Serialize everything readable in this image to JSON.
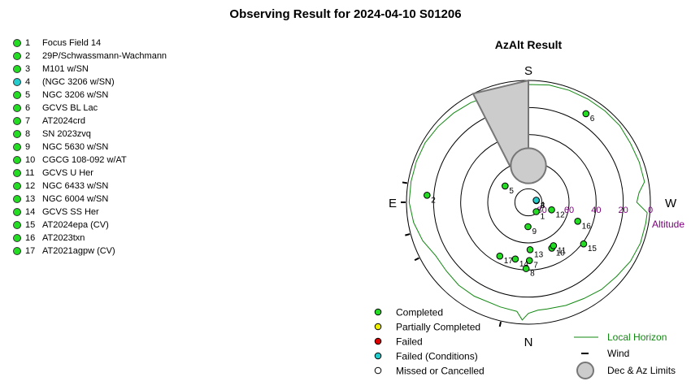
{
  "title": "Observing Result for 2024-04-10 S01206",
  "colors": {
    "completed": "#22dd22",
    "partial": "#eeee00",
    "failed": "#dd0000",
    "failed_conditions": "#22cccc",
    "missed": "#ffffff",
    "horizon": "#118811",
    "altitude_label": "#800080",
    "limits_fill": "#cccccc"
  },
  "targets": [
    {
      "num": "1",
      "name": "Focus Field 14",
      "status": "completed"
    },
    {
      "num": "2",
      "name": "29P/Schwassmann-Wachmann",
      "status": "completed"
    },
    {
      "num": "3",
      "name": "M101 w/SN",
      "status": "completed"
    },
    {
      "num": "4",
      "name": "(NGC 3206 w/SN)",
      "status": "failed_conditions"
    },
    {
      "num": "5",
      "name": "NGC 3206 w/SN",
      "status": "completed"
    },
    {
      "num": "6",
      "name": "GCVS BL Lac",
      "status": "completed"
    },
    {
      "num": "7",
      "name": "AT2024crd",
      "status": "completed"
    },
    {
      "num": "8",
      "name": "SN 2023zvq",
      "status": "completed"
    },
    {
      "num": "9",
      "name": "NGC 5630 w/SN",
      "status": "completed"
    },
    {
      "num": "10",
      "name": "CGCG 108-092 w/AT",
      "status": "completed"
    },
    {
      "num": "11",
      "name": "GCVS U Her",
      "status": "completed"
    },
    {
      "num": "12",
      "name": "NGC 6433 w/SN",
      "status": "completed"
    },
    {
      "num": "13",
      "name": "NGC 6004 w/SN",
      "status": "completed"
    },
    {
      "num": "14",
      "name": "GCVS SS Her",
      "status": "completed"
    },
    {
      "num": "15",
      "name": "AT2024epa (CV)",
      "status": "completed"
    },
    {
      "num": "16",
      "name": "AT2023txn",
      "status": "completed"
    },
    {
      "num": "17",
      "name": "AT2021agpw (CV)",
      "status": "completed"
    }
  ],
  "chart_data": {
    "type": "scatter",
    "projection": "polar-azalt",
    "title": "AzAlt Result",
    "directions": {
      "south": "S",
      "north": "N",
      "east": "E",
      "west": "W"
    },
    "altitude_label": "Altitude",
    "altitude_ticks": [
      {
        "alt": 80,
        "label": "80"
      },
      {
        "alt": 60,
        "label": "60"
      },
      {
        "alt": 40,
        "label": "40"
      },
      {
        "alt": 20,
        "label": "20"
      },
      {
        "alt": 0,
        "label": "0"
      }
    ],
    "altitude_rings": [
      0,
      20,
      40,
      60,
      80
    ],
    "points": [
      {
        "label": "1",
        "az": 140,
        "alt": 81,
        "status": "completed"
      },
      {
        "label": "2",
        "az": 274,
        "alt": 15,
        "status": "completed"
      },
      {
        "label": "3",
        "az": 78,
        "alt": 84,
        "status": "completed"
      },
      {
        "label": "4",
        "az": 75,
        "alt": 84,
        "status": "failed_conditions"
      },
      {
        "label": "5",
        "az": 305,
        "alt": 69,
        "status": "completed"
      },
      {
        "label": "6",
        "az": 33,
        "alt": 12,
        "status": "completed"
      },
      {
        "label": "7",
        "az": 179,
        "alt": 47,
        "status": "completed"
      },
      {
        "label": "8",
        "az": 182,
        "alt": 41,
        "status": "completed"
      },
      {
        "label": "9",
        "az": 181,
        "alt": 72,
        "status": "completed"
      },
      {
        "label": "10",
        "az": 153,
        "alt": 52,
        "status": "completed"
      },
      {
        "label": "11",
        "az": 150,
        "alt": 53,
        "status": "completed"
      },
      {
        "label": "12",
        "az": 108,
        "alt": 72,
        "status": "completed"
      },
      {
        "label": "13",
        "az": 178,
        "alt": 55,
        "status": "completed"
      },
      {
        "label": "14",
        "az": 193,
        "alt": 47,
        "status": "completed"
      },
      {
        "label": "15",
        "az": 127,
        "alt": 39,
        "status": "completed"
      },
      {
        "label": "16",
        "az": 111,
        "alt": 51,
        "status": "completed"
      },
      {
        "label": "17",
        "az": 208,
        "alt": 45,
        "status": "completed"
      }
    ],
    "local_horizon": [
      [
        0,
        3
      ],
      [
        10,
        2
      ],
      [
        20,
        2
      ],
      [
        30,
        2
      ],
      [
        40,
        2
      ],
      [
        50,
        2
      ],
      [
        60,
        3
      ],
      [
        70,
        3
      ],
      [
        80,
        3
      ],
      [
        85,
        8
      ],
      [
        90,
        10
      ],
      [
        95,
        2
      ],
      [
        100,
        2
      ],
      [
        110,
        2
      ],
      [
        120,
        3
      ],
      [
        130,
        5
      ],
      [
        140,
        6
      ],
      [
        150,
        8
      ],
      [
        160,
        9
      ],
      [
        170,
        10
      ],
      [
        175,
        10
      ],
      [
        180,
        8
      ],
      [
        183,
        3
      ],
      [
        186,
        9
      ],
      [
        195,
        10
      ],
      [
        210,
        10
      ],
      [
        220,
        10
      ],
      [
        230,
        11
      ],
      [
        240,
        11
      ],
      [
        250,
        7
      ],
      [
        260,
        4
      ],
      [
        270,
        2
      ],
      [
        280,
        2
      ],
      [
        290,
        2
      ],
      [
        300,
        2
      ],
      [
        310,
        3
      ],
      [
        320,
        4
      ],
      [
        330,
        5
      ],
      [
        335,
        6
      ],
      [
        340,
        5
      ],
      [
        350,
        3
      ],
      [
        360,
        3
      ]
    ],
    "wind": [
      {
        "az": 193
      },
      {
        "az": 243
      },
      {
        "az": 255
      },
      {
        "az": 270
      },
      {
        "az": 279
      }
    ],
    "limits": {
      "dec_circle": {
        "az": 0,
        "alt": 63,
        "radius_alt": 13
      },
      "az_wedge": {
        "az_from": 333,
        "az_to": 360,
        "alt_top": 59
      }
    },
    "legend": [
      {
        "label": "Completed",
        "status": "completed"
      },
      {
        "label": "Partially Completed",
        "status": "partial"
      },
      {
        "label": "Failed",
        "status": "failed"
      },
      {
        "label": "Failed (Conditions)",
        "status": "failed_conditions"
      },
      {
        "label": "Missed or Cancelled",
        "status": "missed"
      },
      {
        "label": "Local Horizon",
        "symbol": "line"
      },
      {
        "label": "Wind",
        "symbol": "tick"
      },
      {
        "label": "Dec & Az Limits",
        "symbol": "disc"
      }
    ]
  }
}
